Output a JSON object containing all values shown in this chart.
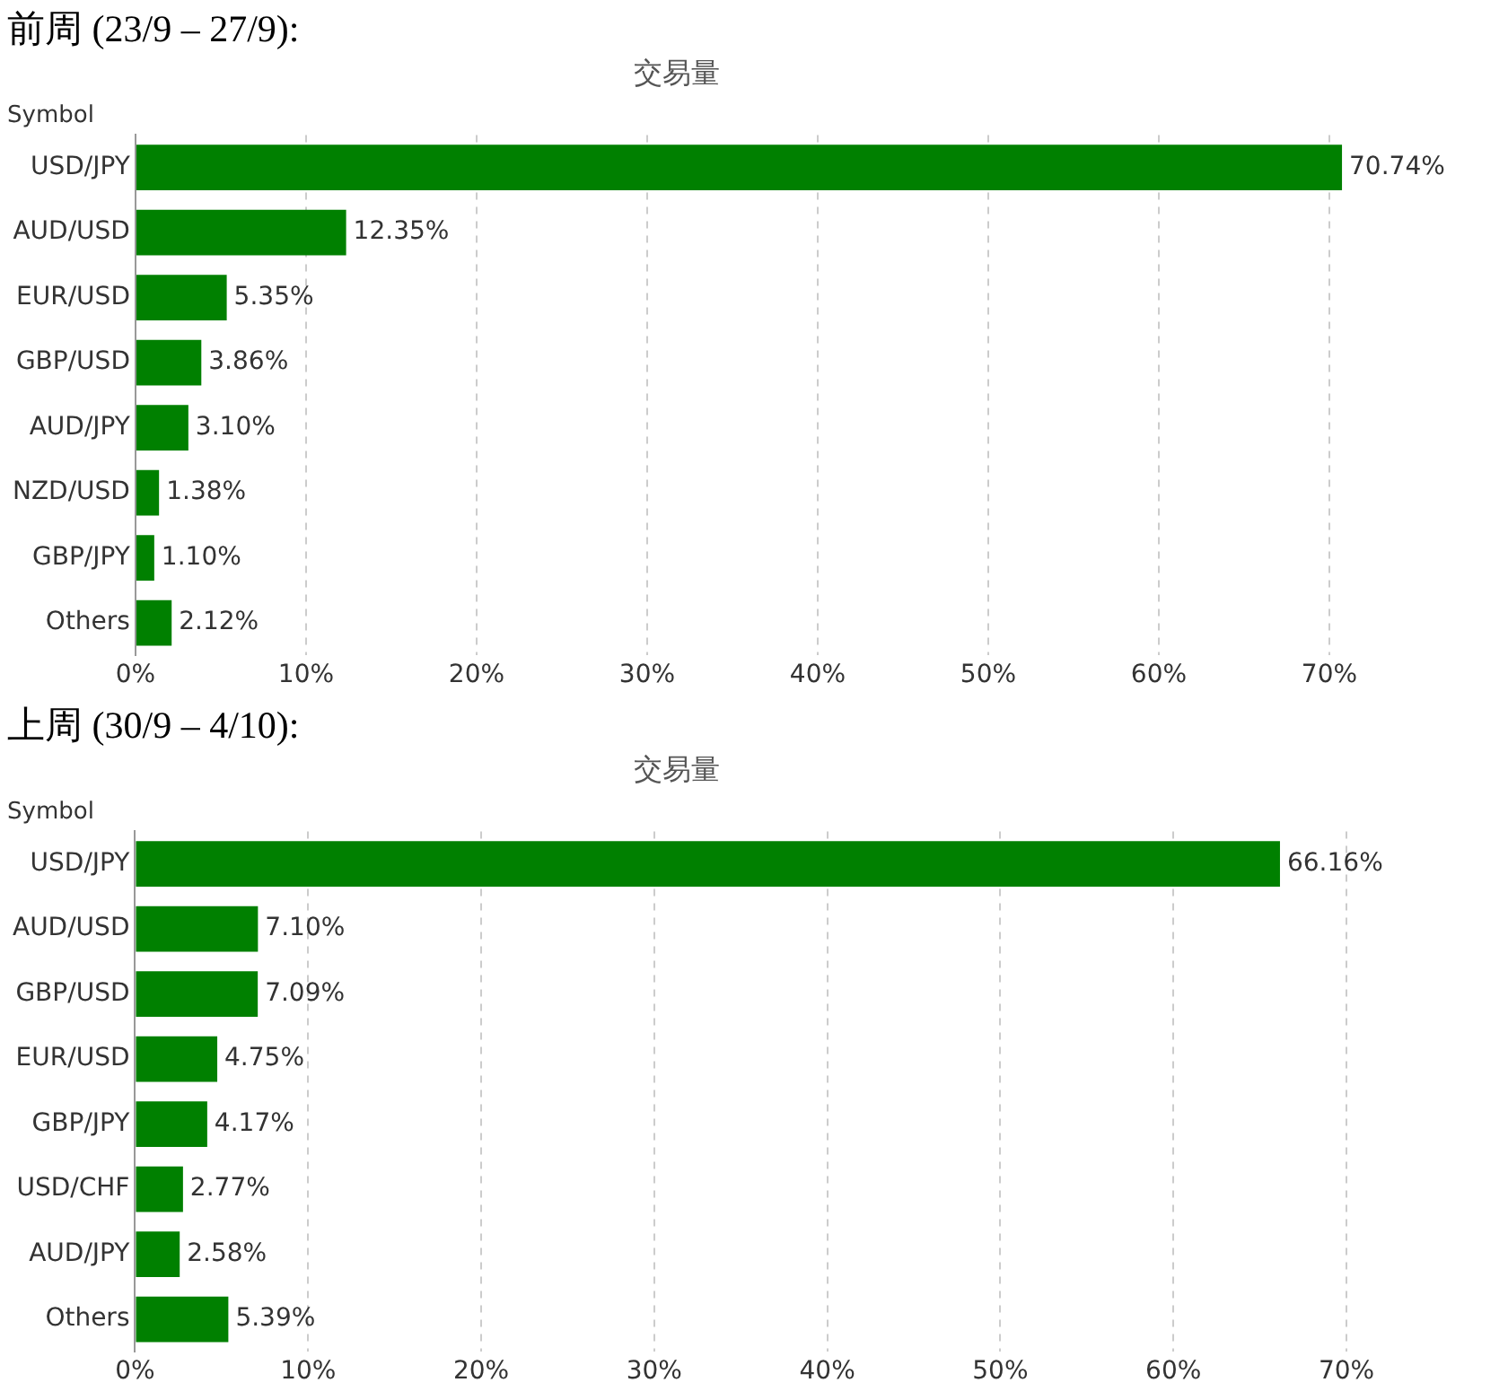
{
  "chart_data": [
    {
      "type": "bar",
      "orientation": "horizontal",
      "title": "前周 (23/9 – 27/9):",
      "subtitle": "交易量",
      "ylabel": "Symbol",
      "categories": [
        "USD/JPY",
        "AUD/USD",
        "EUR/USD",
        "GBP/USD",
        "AUD/JPY",
        "NZD/USD",
        "GBP/JPY",
        "Others"
      ],
      "values": [
        70.74,
        12.35,
        5.35,
        3.86,
        3.1,
        1.38,
        1.1,
        2.12
      ],
      "value_labels": [
        "70.74%",
        "12.35%",
        "5.35%",
        "3.86%",
        "3.10%",
        "1.38%",
        "1.10%",
        "2.12%"
      ],
      "color": "#008000",
      "xlim": [
        0,
        71
      ],
      "xticks": [
        {
          "value": 0,
          "label": "0%"
        },
        {
          "value": 10,
          "label": "10%"
        },
        {
          "value": 20,
          "label": "20%"
        },
        {
          "value": 30,
          "label": "30%"
        },
        {
          "value": 40,
          "label": "40%"
        },
        {
          "value": 50,
          "label": "50%"
        },
        {
          "value": 60,
          "label": "60%"
        },
        {
          "value": 70,
          "label": "70%"
        }
      ],
      "grid": "x",
      "legend": false
    },
    {
      "type": "bar",
      "orientation": "horizontal",
      "title": "上周 (30/9 – 4/10):",
      "subtitle": "交易量",
      "ylabel": "Symbol",
      "categories": [
        "USD/JPY",
        "AUD/USD",
        "GBP/USD",
        "EUR/USD",
        "GBP/JPY",
        "USD/CHF",
        "AUD/JPY",
        "Others"
      ],
      "values": [
        66.16,
        7.1,
        7.09,
        4.75,
        4.17,
        2.77,
        2.58,
        5.39
      ],
      "value_labels": [
        "66.16%",
        "7.10%",
        "7.09%",
        "4.75%",
        "4.17%",
        "2.77%",
        "2.58%",
        "5.39%"
      ],
      "color": "#008000",
      "xlim": [
        0,
        70
      ],
      "xticks": [
        {
          "value": 0,
          "label": "0%"
        },
        {
          "value": 10,
          "label": "10%"
        },
        {
          "value": 20,
          "label": "20%"
        },
        {
          "value": 30,
          "label": "30%"
        },
        {
          "value": 40,
          "label": "40%"
        },
        {
          "value": 50,
          "label": "50%"
        },
        {
          "value": 60,
          "label": "60%"
        },
        {
          "value": 70,
          "label": "70%"
        }
      ],
      "grid": "x",
      "legend": false
    }
  ]
}
